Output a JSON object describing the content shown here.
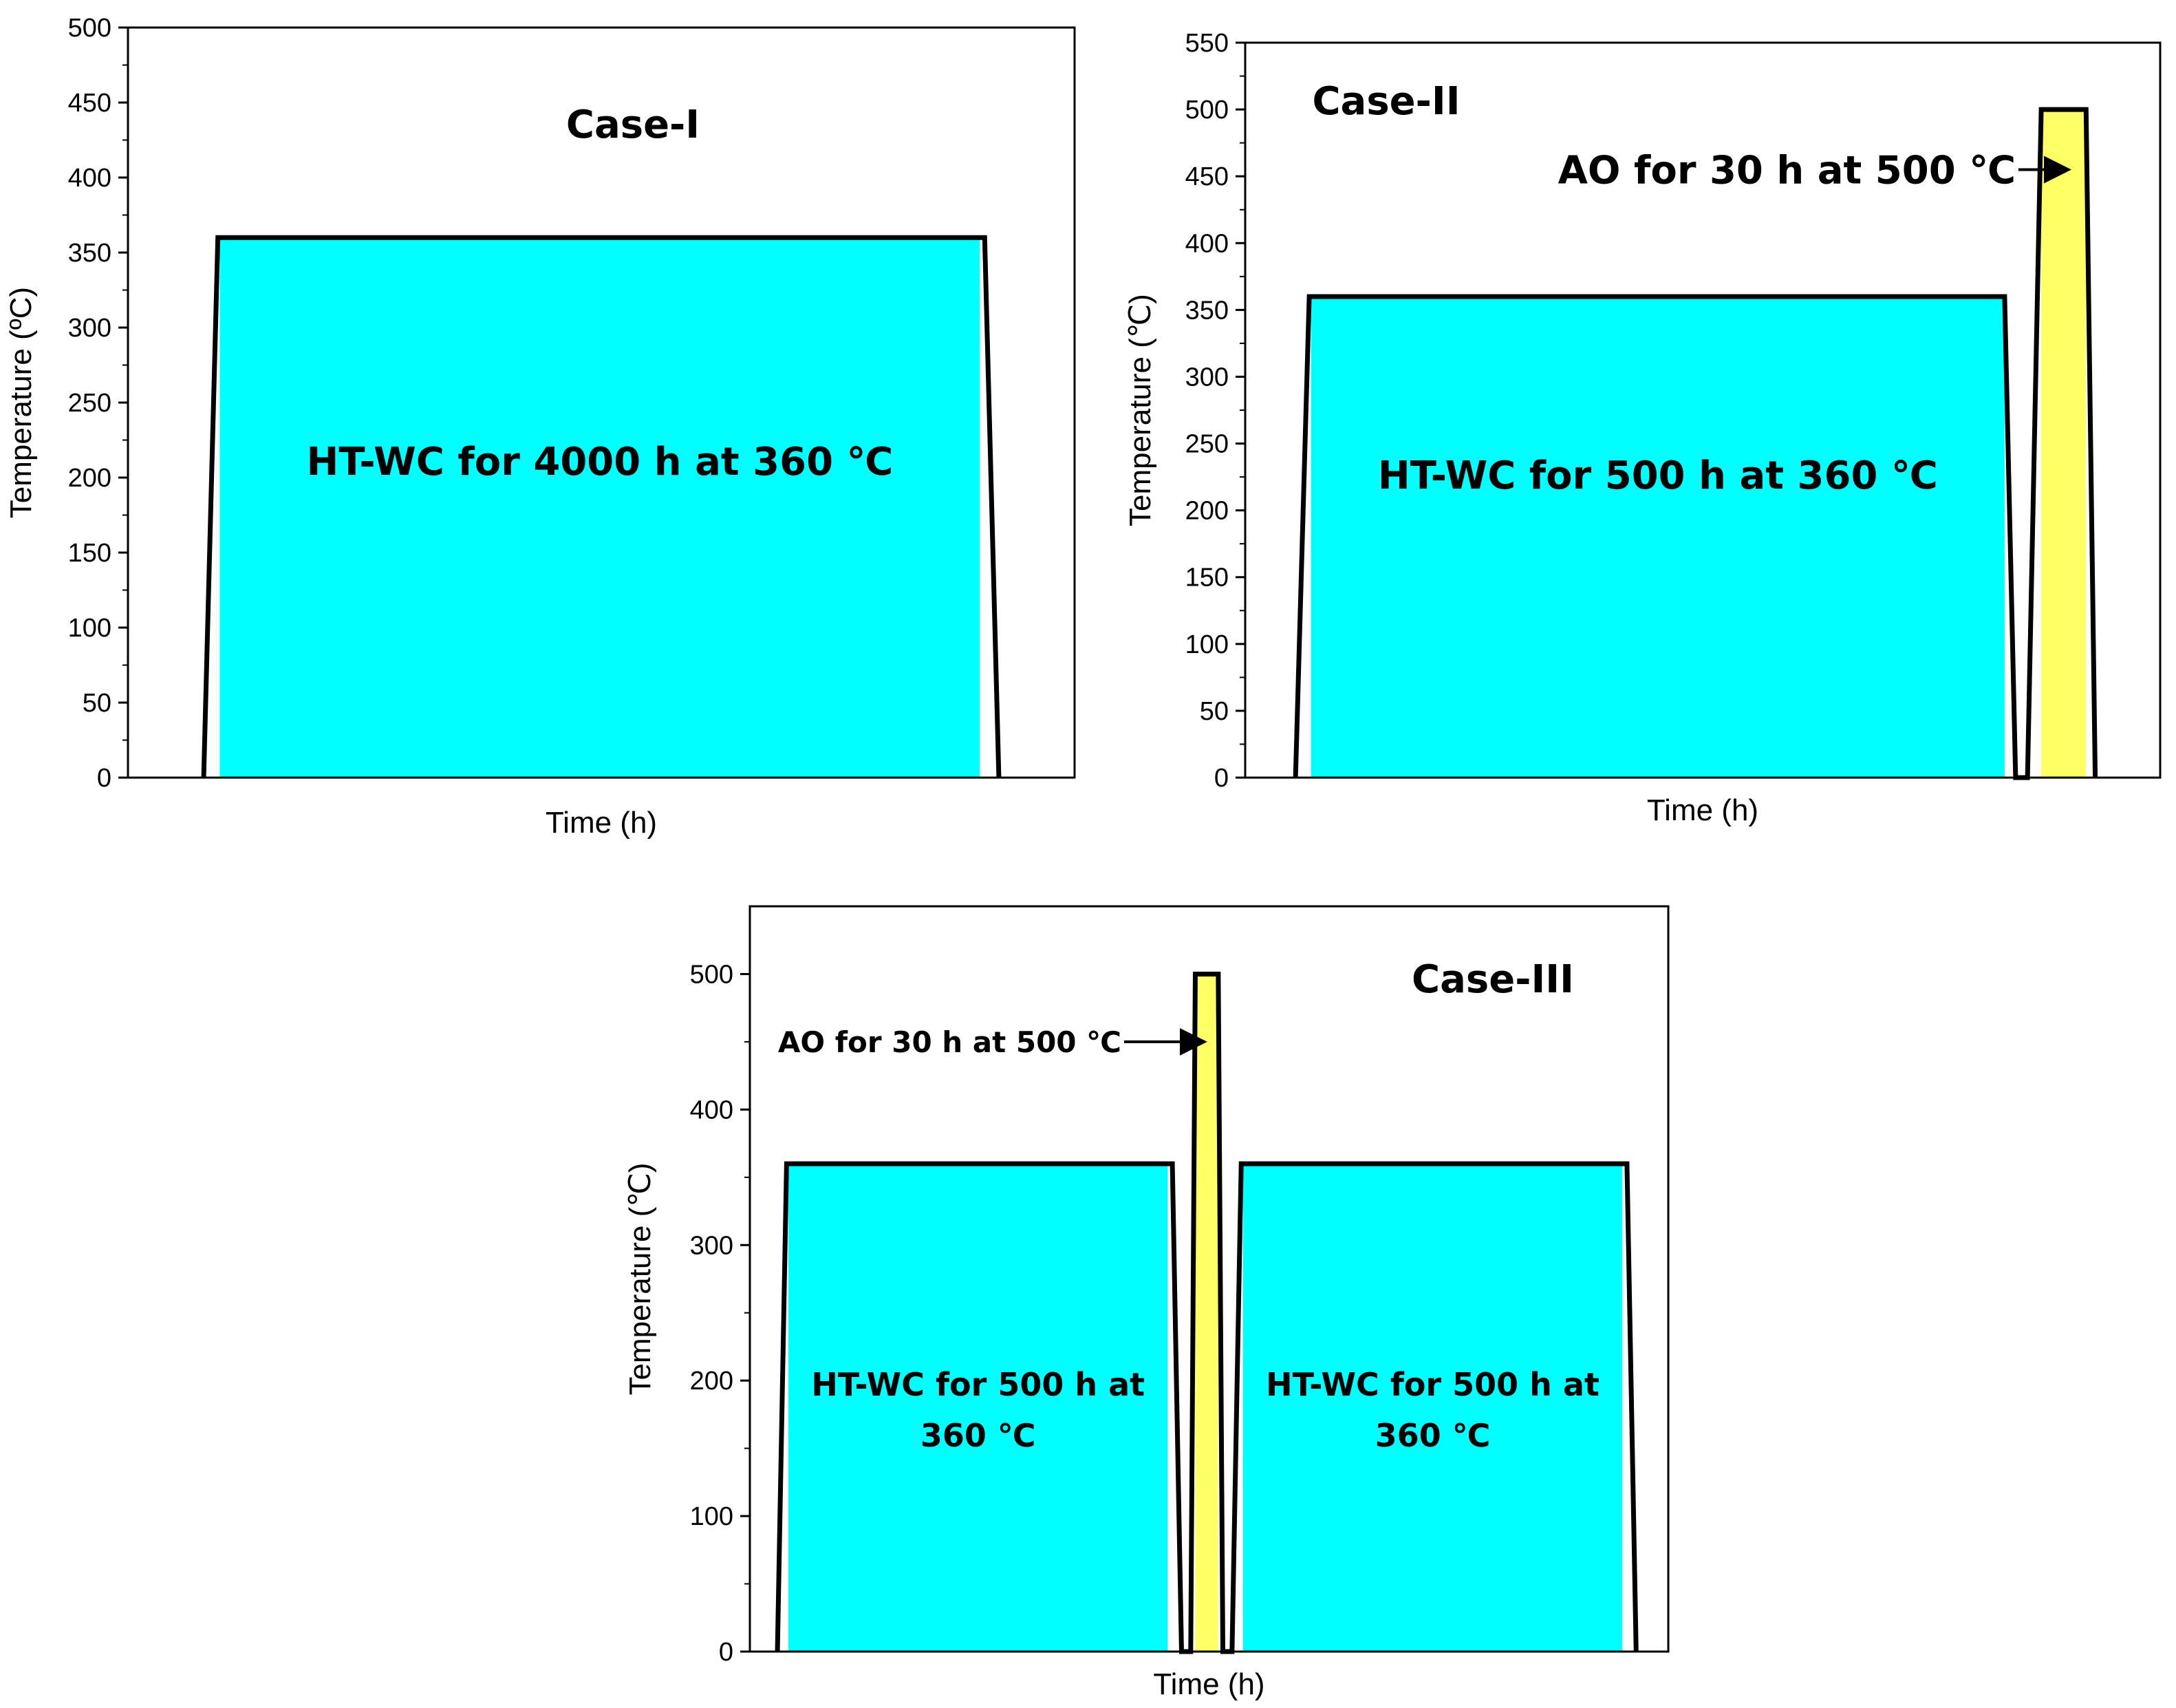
{
  "colors": {
    "ht_wc_fill": "#00FFFF",
    "ao_fill": "#FFFF66",
    "line": "#000000",
    "background": "#FFFFFF"
  },
  "chart_data": [
    {
      "type": "area",
      "title": "Case-I",
      "xlabel": "Time (h)",
      "ylabel": "Temperature (ºC)",
      "ylim": [
        0,
        500
      ],
      "yticks": [
        0,
        50,
        100,
        150,
        200,
        250,
        300,
        350,
        400,
        450,
        500
      ],
      "xticks_shown": false,
      "profile": [
        {
          "x": 0.08,
          "y": 0
        },
        {
          "x": 0.095,
          "y": 360
        },
        {
          "x": 0.905,
          "y": 360
        },
        {
          "x": 0.92,
          "y": 0
        }
      ],
      "regions": [
        {
          "fill": "ht_wc",
          "x0": 0.097,
          "x1": 0.9,
          "y": 360,
          "lines": [
            "HT-WC for 4000 h at 360 ℃"
          ]
        }
      ],
      "annotations": []
    },
    {
      "type": "area",
      "title": "Case-II",
      "xlabel": "Time (h)",
      "ylabel": "Temperature (℃)",
      "ylim": [
        0,
        550
      ],
      "yticks": [
        0,
        50,
        100,
        150,
        200,
        250,
        300,
        350,
        400,
        450,
        500,
        550
      ],
      "xticks_shown": false,
      "profile": [
        {
          "x": 0.055,
          "y": 0
        },
        {
          "x": 0.07,
          "y": 360
        },
        {
          "x": 0.83,
          "y": 360
        },
        {
          "x": 0.842,
          "y": 0
        },
        {
          "x": 0.855,
          "y": 0
        },
        {
          "x": 0.87,
          "y": 500
        },
        {
          "x": 0.919,
          "y": 500
        },
        {
          "x": 0.929,
          "y": 0
        }
      ],
      "regions": [
        {
          "fill": "ht_wc",
          "x0": 0.072,
          "x1": 0.83,
          "y": 360,
          "lines": [
            "HT-WC for 500 h at 360 ℃"
          ]
        },
        {
          "fill": "ao",
          "x0": 0.87,
          "x1": 0.919,
          "y": 500,
          "lines": []
        }
      ],
      "annotations": [
        {
          "text": "AO for 30 h at 500 ℃",
          "arrow_to_x": 0.9,
          "arrow_to_y": 455
        }
      ]
    },
    {
      "type": "area",
      "title": "Case-III",
      "xlabel": "Time (h)",
      "ylabel": "Temperature (℃)",
      "ylim": [
        0,
        550
      ],
      "yticks": [
        0,
        100,
        200,
        300,
        400,
        500
      ],
      "xticks_shown": false,
      "profile": [
        {
          "x": 0.03,
          "y": 0
        },
        {
          "x": 0.04,
          "y": 360
        },
        {
          "x": 0.46,
          "y": 360
        },
        {
          "x": 0.47,
          "y": 0
        },
        {
          "x": 0.48,
          "y": 0
        },
        {
          "x": 0.485,
          "y": 500
        },
        {
          "x": 0.51,
          "y": 500
        },
        {
          "x": 0.515,
          "y": 0
        },
        {
          "x": 0.525,
          "y": 0
        },
        {
          "x": 0.535,
          "y": 360
        },
        {
          "x": 0.955,
          "y": 360
        },
        {
          "x": 0.965,
          "y": 0
        }
      ],
      "regions": [
        {
          "fill": "ht_wc",
          "x0": 0.042,
          "x1": 0.455,
          "y": 360,
          "lines": [
            "HT-WC for 500 h at",
            "360 ℃"
          ]
        },
        {
          "fill": "ao",
          "x0": 0.485,
          "x1": 0.51,
          "y": 500,
          "lines": []
        },
        {
          "fill": "ht_wc",
          "x0": 0.537,
          "x1": 0.95,
          "y": 360,
          "lines": [
            "HT-WC for 500 h at",
            "360 ℃"
          ]
        }
      ],
      "annotations": [
        {
          "text": "AO for 30 h at 500 ℃",
          "arrow_to_x": 0.495,
          "arrow_to_y": 450
        }
      ]
    }
  ]
}
